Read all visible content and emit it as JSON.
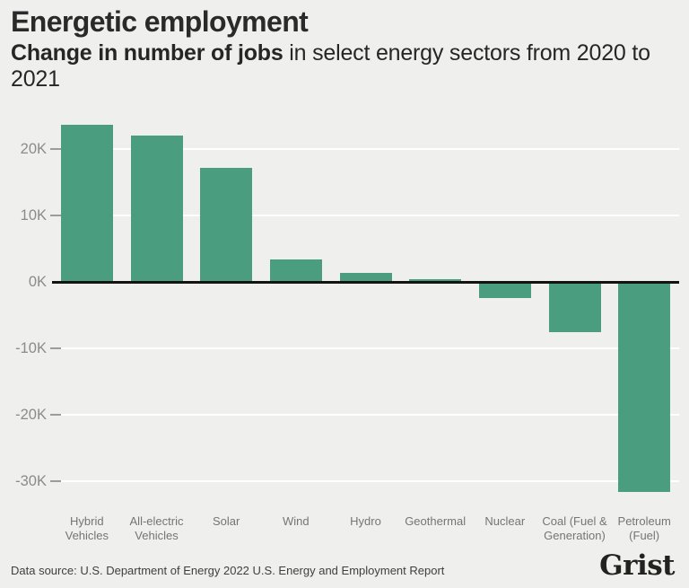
{
  "header": {
    "title": "Energetic employment",
    "subtitle_highlight": "Change in number of jobs",
    "subtitle_rest": " in select energy sectors from 2020 to 2021"
  },
  "footer": {
    "source": "Data source: U.S. Department of Energy 2022 U.S. Energy and Employment Report",
    "logo": "Grist"
  },
  "colors": {
    "background": "#efefed",
    "bar": "#4a9d7f",
    "accent_text": "#3c9b7c",
    "gridline": "#ffffff",
    "tick": "#9c9c9c",
    "zero_line": "#141414",
    "y_label": "#8b8b8b",
    "category_label": "#757575"
  },
  "chart_data": {
    "type": "bar",
    "title": "Energetic employment",
    "subtitle": "Change in number of jobs in select energy sectors from 2020 to 2021",
    "categories": [
      "Hybrid\nVehicles",
      "All-electric\nVehicles",
      "Solar",
      "Wind",
      "Hydro",
      "Geothermal",
      "Nuclear",
      "Coal (Fuel &\nGeneration)",
      "Petroleum\n(Fuel)"
    ],
    "values": [
      23600,
      22000,
      17200,
      3400,
      1400,
      350,
      -2400,
      -7600,
      -31600
    ],
    "xlabel": "",
    "ylabel": "Change in number of jobs",
    "ylim": [
      -32500,
      24500
    ],
    "yticks": [
      {
        "label": "20K",
        "value": 20000
      },
      {
        "label": "10K",
        "value": 10000
      },
      {
        "label": "0K",
        "value": 0
      },
      {
        "label": "-10K",
        "value": -10000
      },
      {
        "label": "-20K",
        "value": -20000
      },
      {
        "label": "-30K",
        "value": -30000
      }
    ],
    "grid": true,
    "legend": false
  }
}
